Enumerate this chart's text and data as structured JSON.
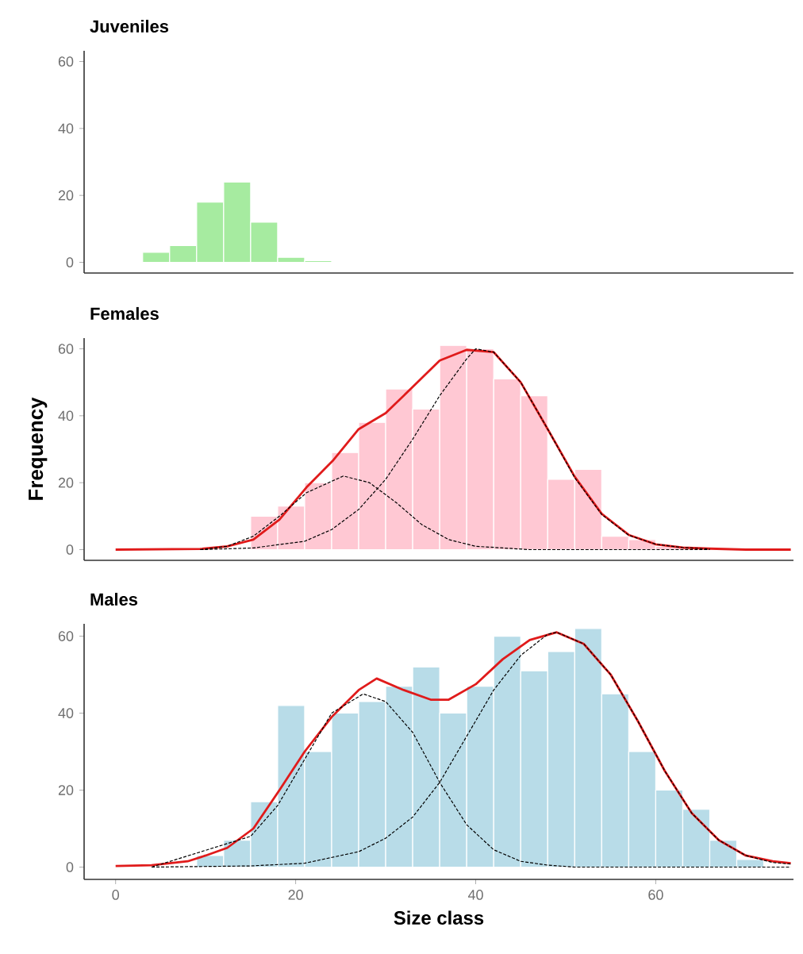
{
  "chart_data": [
    {
      "type": "histogram",
      "title": "Juveniles",
      "bins": [
        3,
        6,
        9,
        12,
        15,
        18,
        21,
        24
      ],
      "values": [
        3,
        5,
        18,
        24,
        12,
        1.5,
        0.5
      ],
      "color": "#a6eba0",
      "xlim": [
        -3.5,
        75.3
      ],
      "ylim": [
        -3.2,
        63.2
      ],
      "yticks": [
        0,
        20,
        40,
        60
      ],
      "tick_labels": "y"
    },
    {
      "type": "histogram",
      "title": "Females",
      "ylabel": "Frequency",
      "bins": [
        15,
        18,
        21,
        24,
        27,
        30,
        33,
        36,
        39,
        42,
        45,
        48,
        51,
        54,
        57,
        60,
        63,
        66
      ],
      "values": [
        10,
        13,
        20,
        29,
        38,
        48,
        42,
        61,
        60,
        51,
        46,
        21,
        24,
        4,
        3,
        1,
        null
      ],
      "color": "#ffc8d3",
      "xlim": [
        -3.5,
        75.3
      ],
      "ylim": [
        -3.2,
        63.2
      ],
      "yticks": [
        0,
        20,
        40,
        60
      ],
      "tick_labels": "y",
      "series": [
        {
          "type": "line",
          "color": "#000000",
          "line_style": "dashed",
          "x": [
            9.4,
            12.4,
            15.3,
            18.2,
            21.2,
            25.3,
            28.2,
            31.2,
            34,
            37,
            40,
            46,
            55,
            66
          ],
          "values": [
            0,
            1,
            4,
            10,
            17,
            22,
            20,
            14,
            7.5,
            3,
            1,
            0,
            0,
            0
          ]
        },
        {
          "type": "line",
          "color": "#000000",
          "line_style": "dashed",
          "x": [
            9.4,
            15.3,
            21,
            24,
            27,
            30,
            33,
            36,
            39,
            40,
            42,
            45,
            48,
            51,
            54,
            57,
            60,
            63,
            66
          ],
          "values": [
            0,
            0.5,
            2.5,
            6,
            12,
            21,
            33,
            46,
            57,
            60,
            59,
            50,
            36,
            21.5,
            10.5,
            4.3,
            1.6,
            0.6,
            0.2
          ]
        },
        {
          "type": "line",
          "color": "#e01b1b",
          "line_style": "solid",
          "x": [
            0,
            9.4,
            12.4,
            15.3,
            18.2,
            21.2,
            24.1,
            27,
            30,
            33,
            36,
            39,
            42,
            45,
            48,
            51,
            54,
            57,
            60,
            63,
            66,
            70,
            75
          ],
          "values": [
            0,
            0.2,
            1,
            3,
            9,
            18.6,
            26.5,
            36,
            40.8,
            48.6,
            56.5,
            59.7,
            59,
            50,
            36,
            21.8,
            10.7,
            4.4,
            1.6,
            0.6,
            0.3,
            0,
            0
          ]
        }
      ]
    },
    {
      "type": "histogram",
      "title": "Males",
      "xlabel": "Size class",
      "bins": [
        9,
        12,
        15,
        18,
        21,
        24,
        27,
        30,
        33,
        36,
        39,
        42,
        45,
        48,
        51,
        54,
        57,
        60,
        63,
        66,
        69,
        72
      ],
      "values": [
        3,
        7,
        17,
        42,
        30,
        40,
        43,
        47,
        52,
        40,
        47,
        60,
        51,
        56,
        62,
        45,
        30,
        20,
        15,
        7,
        2
      ],
      "color": "#b8dce8",
      "xlim": [
        -3.5,
        75.3
      ],
      "ylim": [
        -3.2,
        63.2
      ],
      "xticks": [
        0,
        20,
        40,
        60
      ],
      "yticks": [
        0,
        20,
        40,
        60
      ],
      "series": [
        {
          "type": "line",
          "color": "#000000",
          "line_style": "dashed",
          "x": [
            4,
            15,
            18,
            21,
            24,
            27.5,
            30,
            33,
            36,
            39,
            42,
            45,
            48,
            51,
            75
          ],
          "values": [
            0,
            8,
            16,
            28,
            40,
            45,
            43,
            35,
            22,
            11,
            4.5,
            1.5,
            0.5,
            0,
            0
          ]
        },
        {
          "type": "line",
          "color": "#000000",
          "line_style": "dashed",
          "x": [
            4,
            15,
            21,
            27,
            30,
            33,
            36,
            39,
            42,
            45,
            48,
            49,
            52,
            55,
            58,
            61,
            64,
            67,
            70,
            73,
            75
          ],
          "values": [
            0,
            0.3,
            1,
            4,
            7.5,
            13,
            22,
            34,
            46,
            55,
            60.5,
            61,
            58,
            50,
            38,
            25,
            14,
            7,
            3,
            1.2,
            0.8
          ]
        },
        {
          "type": "line",
          "color": "#e01b1b",
          "line_style": "solid",
          "x": [
            0,
            4,
            8,
            10,
            12.4,
            15.3,
            18.2,
            21,
            24,
            27,
            29,
            32,
            35,
            37,
            40,
            43,
            46,
            49,
            52,
            55,
            58,
            61,
            64,
            67,
            70,
            73,
            75
          ],
          "values": [
            0.3,
            0.5,
            1.5,
            3,
            5,
            10,
            20,
            30,
            39,
            46,
            49,
            46,
            43.5,
            43.5,
            47.5,
            54,
            59,
            61,
            58,
            50,
            38,
            25,
            14,
            7,
            3,
            1.5,
            1
          ]
        }
      ]
    }
  ]
}
